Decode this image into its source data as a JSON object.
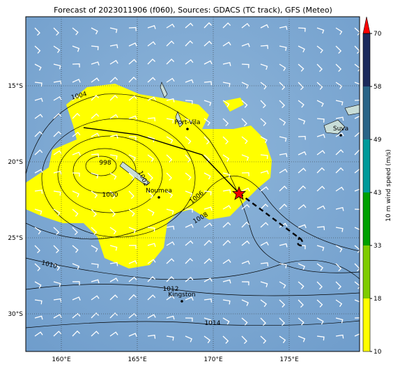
{
  "title": "Forecast of 2023011906 (f060), Sources: GDACS (TC track), GFS (Meteo)",
  "lon_ticks": [
    {
      "value": 160,
      "label": "160°E"
    },
    {
      "value": 165,
      "label": "165°E"
    },
    {
      "value": 170,
      "label": "170°E"
    },
    {
      "value": 175,
      "label": "175°E"
    }
  ],
  "lat_ticks": [
    {
      "value": -15,
      "label": "15°S"
    },
    {
      "value": -20,
      "label": "20°S"
    },
    {
      "value": -25,
      "label": "25°S"
    },
    {
      "value": -30,
      "label": "30°S"
    }
  ],
  "places": [
    "Port-Vila",
    "Suva",
    "Noumea",
    "Kingston"
  ],
  "isobar_labels": [
    1004,
    998,
    1000,
    1002,
    1006,
    1008,
    1010,
    1012,
    1014
  ],
  "colorbar": {
    "label": "10 m wind speed (m/s)",
    "ticks": [
      10,
      18,
      33,
      43,
      49,
      58,
      70
    ],
    "colors": [
      "#ffff00",
      "#7fcc00",
      "#00a000",
      "#009a9a",
      "#2a6488",
      "#1c2a5c"
    ],
    "extend_color": "#ff0000"
  }
}
